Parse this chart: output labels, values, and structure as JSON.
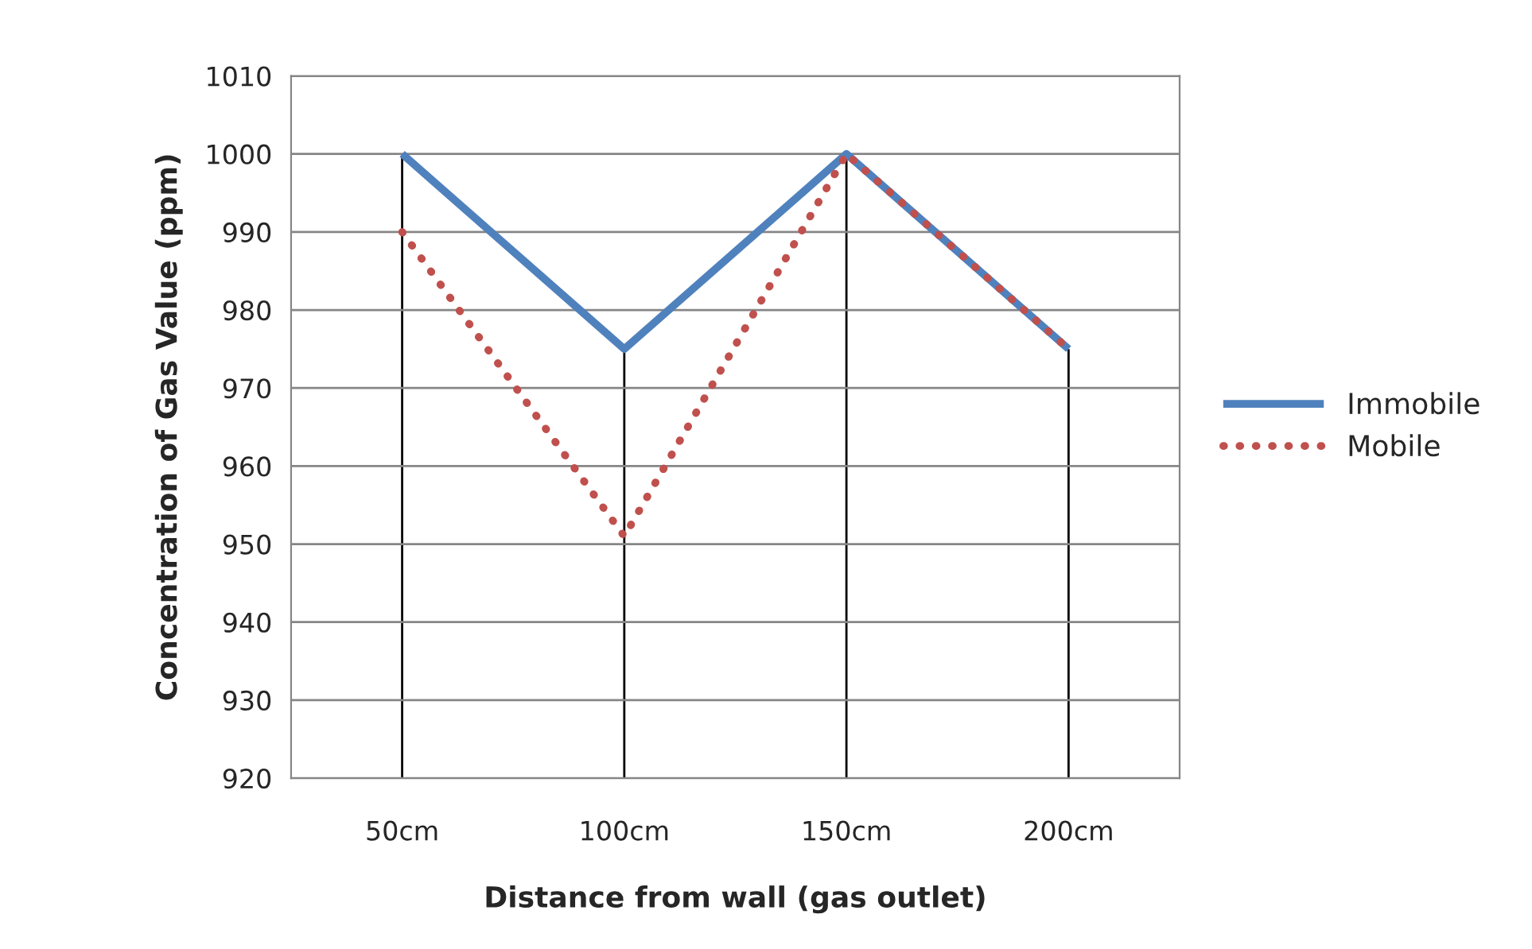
{
  "chart_data": {
    "type": "line",
    "xlabel": "Distance from wall (gas outlet)",
    "ylabel": "Concentration of Gas Value (ppm)",
    "categories": [
      "50cm",
      "100cm",
      "150cm",
      "200cm"
    ],
    "series": [
      {
        "name": "Immobile",
        "color": "#4f81bd",
        "values": [
          1000,
          975,
          1000,
          975
        ],
        "line_style": "solid"
      },
      {
        "name": "Mobile",
        "color": "#c0504d",
        "values": [
          990,
          951,
          1000,
          975
        ],
        "line_style": "dotted"
      }
    ],
    "ylim": [
      920,
      1010
    ],
    "yticks": [
      920,
      930,
      940,
      950,
      960,
      970,
      980,
      990,
      1000,
      1010
    ],
    "grid": true,
    "legend": "right",
    "marker": "none"
  }
}
